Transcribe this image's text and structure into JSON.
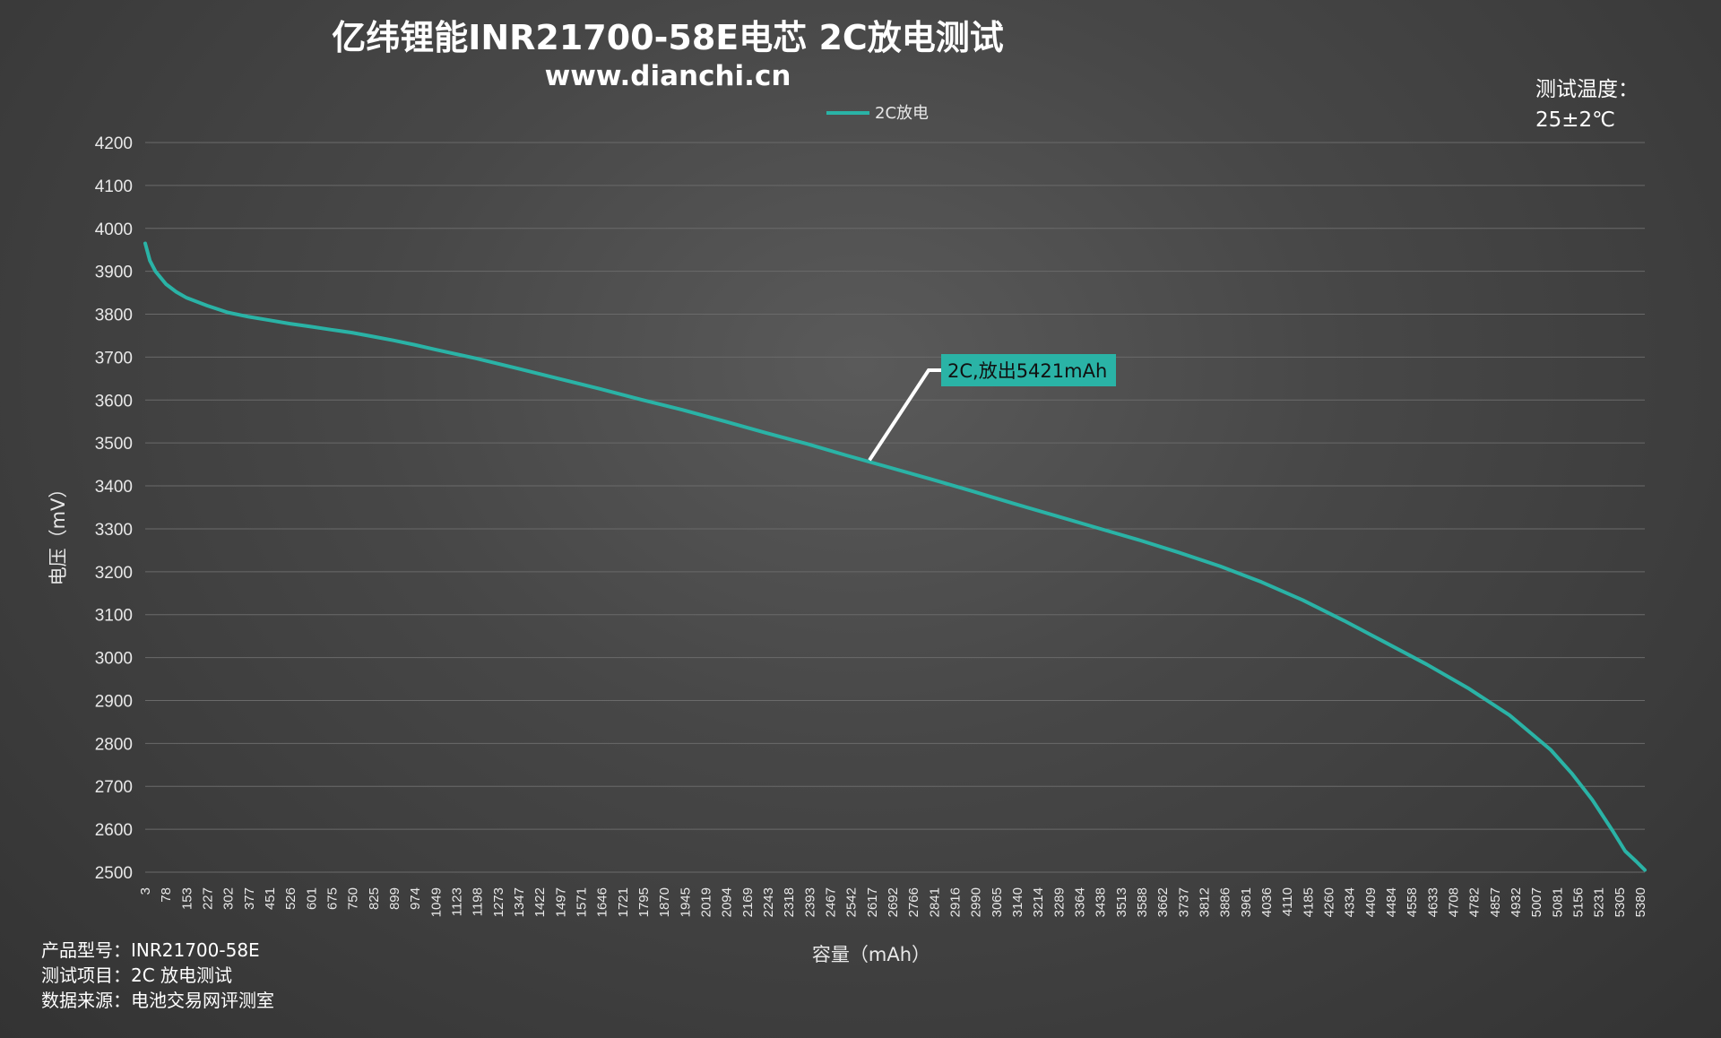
{
  "chart_data": {
    "type": "line",
    "title": "亿纬锂能INR21700-58E电芯 2C放电测试",
    "subtitle": "www.dianchi.cn",
    "xlabel": "容量（mAh）",
    "ylabel": "电压（mV）",
    "ylim": [
      2500,
      4200
    ],
    "yticks": [
      2500,
      2600,
      2700,
      2800,
      2900,
      3000,
      3100,
      3200,
      3300,
      3400,
      3500,
      3600,
      3700,
      3800,
      3900,
      4000,
      4100,
      4200
    ],
    "xlim": [
      3,
      5421
    ],
    "xtick_labels": [
      "3",
      "78",
      "153",
      "227",
      "302",
      "377",
      "451",
      "526",
      "601",
      "675",
      "750",
      "825",
      "899",
      "974",
      "1049",
      "1123",
      "1198",
      "1273",
      "1347",
      "1422",
      "1497",
      "1571",
      "1646",
      "1721",
      "1795",
      "1870",
      "1945",
      "2019",
      "2094",
      "2169",
      "2243",
      "2318",
      "2393",
      "2467",
      "2542",
      "2617",
      "2692",
      "2766",
      "2841",
      "2916",
      "2990",
      "3065",
      "3140",
      "3214",
      "3289",
      "3364",
      "3438",
      "3513",
      "3588",
      "3662",
      "3737",
      "3812",
      "3886",
      "3961",
      "4036",
      "4110",
      "4185",
      "4260",
      "4334",
      "4409",
      "4484",
      "4558",
      "4633",
      "4708",
      "4782",
      "4857",
      "4932",
      "5007",
      "5081",
      "5156",
      "5231",
      "5305",
      "5380"
    ],
    "grid": true,
    "legend": "top-center",
    "series": [
      {
        "name": "2C放电",
        "color": "#2ab3a6",
        "x": [
          3,
          20,
          40,
          78,
          115,
          153,
          227,
          302,
          377,
          451,
          526,
          601,
          675,
          750,
          825,
          899,
          974,
          1049,
          1198,
          1347,
          1497,
          1646,
          1795,
          1945,
          2094,
          2243,
          2393,
          2542,
          2692,
          2841,
          2990,
          3140,
          3289,
          3438,
          3588,
          3737,
          3886,
          4036,
          4185,
          4334,
          4484,
          4633,
          4782,
          4932,
          5081,
          5156,
          5231,
          5305,
          5350,
          5390,
          5421
        ],
        "y": [
          3965,
          3925,
          3900,
          3870,
          3852,
          3838,
          3820,
          3804,
          3794,
          3786,
          3778,
          3771,
          3764,
          3757,
          3748,
          3739,
          3729,
          3718,
          3697,
          3674,
          3650,
          3626,
          3601,
          3577,
          3551,
          3524,
          3498,
          3470,
          3443,
          3416,
          3388,
          3359,
          3331,
          3303,
          3275,
          3245,
          3213,
          3176,
          3134,
          3086,
          3035,
          2984,
          2929,
          2866,
          2785,
          2731,
          2669,
          2596,
          2549,
          2525,
          2505
        ]
      }
    ],
    "annotations": [
      {
        "text": "2C,放出5421mAh",
        "x": 2617,
        "y": 3460
      }
    ]
  },
  "corner_note": {
    "line1": "测试温度：",
    "line2": "25±2℃"
  },
  "footer": {
    "line1": "产品型号：INR21700-58E",
    "line2": "测试项目：2C 放电测试",
    "line3": "数据来源：电池交易网评测室"
  }
}
